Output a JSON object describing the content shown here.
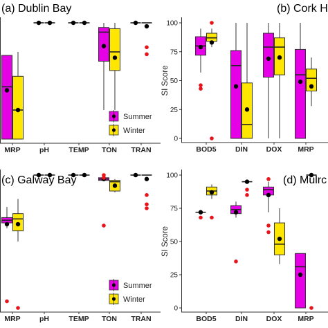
{
  "chart_data": [
    {
      "id": "a",
      "type": "box",
      "title": "(a) Dublin Bay",
      "ylabel": "",
      "ylim": [
        0,
        100
      ],
      "yticks": [],
      "categories": [
        "MRP",
        "pH",
        "TEMP",
        "TON",
        "TRAN"
      ],
      "legend": {
        "show": true,
        "position": "bottom-right"
      },
      "series": [
        {
          "name": "Summer",
          "color": "#e600e6",
          "boxes": [
            {
              "cat": "MRP",
              "min": 0,
              "q1": 0,
              "median": 45,
              "q3": 72,
              "max": 72,
              "mean": 42,
              "outliers": []
            },
            {
              "cat": "pH",
              "min": 100,
              "q1": 100,
              "median": 100,
              "q3": 100,
              "max": 100,
              "mean": 100,
              "outliers": []
            },
            {
              "cat": "TEMP",
              "min": 100,
              "q1": 100,
              "median": 100,
              "q3": 100,
              "max": 100,
              "mean": 100,
              "outliers": []
            },
            {
              "cat": "TON",
              "min": 25,
              "q1": 67,
              "median": 92,
              "q3": 96,
              "max": 100,
              "mean": 80,
              "outliers": []
            },
            {
              "cat": "TRAN",
              "min": 100,
              "q1": 100,
              "median": 100,
              "q3": 100,
              "max": 100,
              "mean": 100,
              "outliers": []
            }
          ]
        },
        {
          "name": "Winter",
          "color": "#ffe600",
          "boxes": [
            {
              "cat": "MRP",
              "min": 0,
              "q1": 0,
              "median": 25,
              "q3": 54,
              "max": 75,
              "mean": 25,
              "outliers": []
            },
            {
              "cat": "pH",
              "min": 100,
              "q1": 100,
              "median": 100,
              "q3": 100,
              "max": 100,
              "mean": 100,
              "outliers": []
            },
            {
              "cat": "TEMP",
              "min": 100,
              "q1": 100,
              "median": 100,
              "q3": 100,
              "max": 100,
              "mean": 100,
              "outliers": []
            },
            {
              "cat": "TON",
              "min": 25,
              "q1": 59,
              "median": 75,
              "q3": 95,
              "max": 100,
              "mean": 70,
              "outliers": []
            },
            {
              "cat": "TRAN",
              "min": 100,
              "q1": 100,
              "median": 100,
              "q3": 100,
              "max": 100,
              "mean": 97,
              "outliers": [
                79,
                73
              ]
            }
          ]
        }
      ]
    },
    {
      "id": "b",
      "type": "box",
      "title": "(b) Cork H",
      "ylabel": "SI Score",
      "ylim": [
        0,
        100
      ],
      "yticks": [
        0,
        25,
        50,
        75,
        100
      ],
      "categories": [
        "BOD5",
        "DIN",
        "DOX",
        "MRP"
      ],
      "legend": {
        "show": false
      },
      "series": [
        {
          "name": "Summer",
          "color": "#e600e6",
          "boxes": [
            {
              "cat": "BOD5",
              "min": 57,
              "q1": 72,
              "median": 80,
              "q3": 88,
              "max": 95,
              "mean": 79,
              "outliers": [
                46,
                43
              ]
            },
            {
              "cat": "DIN",
              "min": 0,
              "q1": 0,
              "median": 63,
              "q3": 76,
              "max": 100,
              "mean": 45,
              "outliers": []
            },
            {
              "cat": "DOX",
              "min": 0,
              "q1": 53,
              "median": 79,
              "q3": 91,
              "max": 100,
              "mean": 69,
              "outliers": []
            },
            {
              "cat": "MRP",
              "min": 0,
              "q1": 0,
              "median": 55,
              "q3": 77,
              "max": 100,
              "mean": 49,
              "outliers": []
            }
          ]
        },
        {
          "name": "Winter",
          "color": "#ffe600",
          "boxes": [
            {
              "cat": "BOD5",
              "min": 79,
              "q1": 84,
              "median": 87,
              "q3": 91,
              "max": 95,
              "mean": 83,
              "outliers": [
                100,
                0
              ]
            },
            {
              "cat": "DIN",
              "min": 0,
              "q1": 0,
              "median": 12,
              "q3": 48,
              "max": 100,
              "mean": 25,
              "outliers": []
            },
            {
              "cat": "DOX",
              "min": 0,
              "q1": 55,
              "median": 79,
              "q3": 87,
              "max": 100,
              "mean": 70,
              "outliers": []
            },
            {
              "cat": "MRP",
              "min": 28,
              "q1": 41,
              "median": 52,
              "q3": 60,
              "max": 70,
              "mean": 45,
              "outliers": []
            }
          ]
        }
      ]
    },
    {
      "id": "c",
      "type": "box",
      "title": "(c) Galway Bay",
      "ylabel": "",
      "ylim": [
        0,
        100
      ],
      "yticks": [],
      "categories": [
        "MRP",
        "pH",
        "TEMP",
        "TON",
        "TRAN"
      ],
      "legend": {
        "show": true,
        "position": "bottom-right"
      },
      "series": [
        {
          "name": "Summer",
          "color": "#e600e6",
          "boxes": [
            {
              "cat": "MRP",
              "min": 60,
              "q1": 64,
              "median": 66,
              "q3": 68,
              "max": 76,
              "mean": 63,
              "outliers": [
                5
              ]
            },
            {
              "cat": "pH",
              "min": 100,
              "q1": 100,
              "median": 100,
              "q3": 100,
              "max": 100,
              "mean": 100,
              "outliers": []
            },
            {
              "cat": "TEMP",
              "min": 100,
              "q1": 100,
              "median": 100,
              "q3": 100,
              "max": 100,
              "mean": 100,
              "outliers": []
            },
            {
              "cat": "TON",
              "min": 96,
              "q1": 96,
              "median": 97,
              "q3": 98,
              "max": 100,
              "mean": 97,
              "outliers": [
                100,
                98,
                98,
                62
              ]
            },
            {
              "cat": "TRAN",
              "min": 100,
              "q1": 100,
              "median": 100,
              "q3": 100,
              "max": 100,
              "mean": 100,
              "outliers": []
            }
          ]
        },
        {
          "name": "Winter",
          "color": "#ffe600",
          "boxes": [
            {
              "cat": "MRP",
              "min": 50,
              "q1": 58,
              "median": 67,
              "q3": 71,
              "max": 82,
              "mean": 63,
              "outliers": [
                0
              ]
            },
            {
              "cat": "pH",
              "min": 100,
              "q1": 100,
              "median": 100,
              "q3": 100,
              "max": 100,
              "mean": 100,
              "outliers": []
            },
            {
              "cat": "TEMP",
              "min": 100,
              "q1": 100,
              "median": 100,
              "q3": 100,
              "max": 100,
              "mean": 100,
              "outliers": []
            },
            {
              "cat": "TON",
              "min": 87,
              "q1": 88,
              "median": 95,
              "q3": 96,
              "max": 97,
              "mean": 92,
              "outliers": []
            },
            {
              "cat": "TRAN",
              "min": 100,
              "q1": 100,
              "median": 100,
              "q3": 100,
              "max": 100,
              "mean": 97,
              "outliers": [
                85,
                78,
                75
              ]
            }
          ]
        }
      ]
    },
    {
      "id": "d",
      "type": "box",
      "title": "(d) Mulrc",
      "ylabel": "SI Score",
      "ylim": [
        0,
        100
      ],
      "yticks": [
        0,
        25,
        50,
        75,
        100
      ],
      "categories": [
        "BOD5",
        "DIN",
        "DOX",
        "MRP"
      ],
      "legend": {
        "show": false
      },
      "series": [
        {
          "name": "Summer",
          "color": "#e600e6",
          "boxes": [
            {
              "cat": "BOD5",
              "min": 72,
              "q1": 72,
              "median": 72,
              "q3": 72,
              "max": 72,
              "mean": 72,
              "outliers": [
                68
              ]
            },
            {
              "cat": "DIN",
              "min": 68,
              "q1": 71,
              "median": 74,
              "q3": 77,
              "max": 80,
              "mean": 72,
              "outliers": [
                35
              ]
            },
            {
              "cat": "DOX",
              "min": 72,
              "q1": 85,
              "median": 89,
              "q3": 91,
              "max": 95,
              "mean": 85,
              "outliers": [
                97,
                62,
                57
              ]
            },
            {
              "cat": "MRP",
              "min": 0,
              "q1": 0,
              "median": 31,
              "q3": 41,
              "max": 41,
              "mean": 25,
              "outliers": []
            }
          ]
        },
        {
          "name": "Winter",
          "color": "#ffe600",
          "boxes": [
            {
              "cat": "BOD5",
              "min": 82,
              "q1": 85,
              "median": 88,
              "q3": 91,
              "max": 93,
              "mean": 87,
              "outliers": [
                68
              ]
            },
            {
              "cat": "DIN",
              "min": 95,
              "q1": 95,
              "median": 95,
              "q3": 95,
              "max": 95,
              "mean": 95,
              "outliers": [
                89,
                85
              ]
            },
            {
              "cat": "DOX",
              "min": 33,
              "q1": 40,
              "median": 48,
              "q3": 64,
              "max": 75,
              "mean": 52,
              "outliers": []
            },
            {
              "cat": "MRP",
              "min": 100,
              "q1": 100,
              "median": 100,
              "q3": 100,
              "max": 100,
              "mean": 100,
              "outliers": [
                0
              ]
            }
          ]
        }
      ]
    }
  ]
}
